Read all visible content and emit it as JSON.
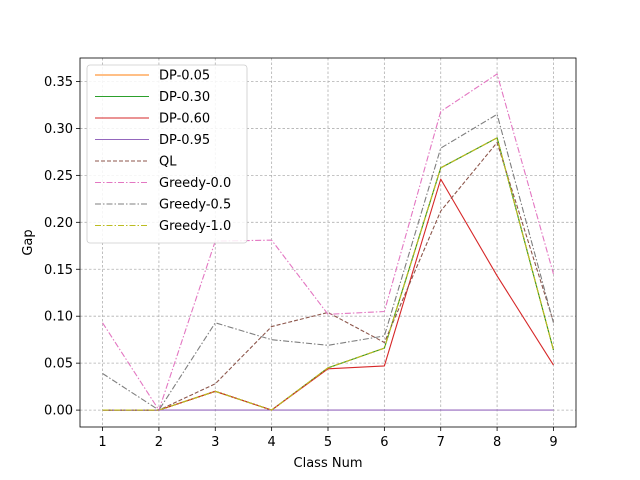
{
  "chart_data": {
    "type": "line",
    "title": "",
    "xlabel": "Class Num",
    "ylabel": "Gap",
    "x": [
      1,
      2,
      3,
      4,
      5,
      6,
      7,
      8,
      9
    ],
    "xlim": [
      0.6,
      9.4
    ],
    "ylim": [
      -0.018,
      0.375
    ],
    "xticks": [
      "1",
      "2",
      "3",
      "4",
      "5",
      "6",
      "7",
      "8",
      "9"
    ],
    "yticks": [
      0.0,
      0.05,
      0.1,
      0.15,
      0.2,
      0.25,
      0.3,
      0.35
    ],
    "ytick_labels": [
      "0.00",
      "0.05",
      "0.10",
      "0.15",
      "0.20",
      "0.25",
      "0.30",
      "0.35"
    ],
    "grid": true,
    "legend_position": "top-left",
    "series": [
      {
        "name": "DP-0.05",
        "color": "#ff7f0e",
        "dash": "solid",
        "values": [
          0.0,
          0.0,
          0.02,
          0.0,
          0.045,
          0.066,
          0.258,
          0.29,
          0.064
        ]
      },
      {
        "name": "DP-0.30",
        "color": "#2ca02c",
        "dash": "solid",
        "values": [
          0.0,
          0.0,
          0.02,
          0.0,
          0.045,
          0.066,
          0.258,
          0.29,
          0.064
        ]
      },
      {
        "name": "DP-0.60",
        "color": "#d62728",
        "dash": "solid",
        "values": [
          0.0,
          0.0,
          0.02,
          0.0,
          0.044,
          0.047,
          0.246,
          0.143,
          0.048
        ]
      },
      {
        "name": "DP-0.95",
        "color": "#9467bd",
        "dash": "solid",
        "values": [
          0.0,
          0.0,
          0.0,
          0.0,
          0.0,
          0.0,
          0.0,
          0.0,
          0.0
        ]
      },
      {
        "name": "QL",
        "color": "#8c564b",
        "dash": "dashed",
        "values": [
          0.0,
          0.0,
          0.028,
          0.089,
          0.104,
          0.072,
          0.212,
          0.285,
          0.094
        ]
      },
      {
        "name": "Greedy-0.0",
        "color": "#e377c2",
        "dash": "dashdot",
        "values": [
          0.093,
          0.0,
          0.18,
          0.181,
          0.102,
          0.105,
          0.318,
          0.358,
          0.145
        ]
      },
      {
        "name": "Greedy-0.5",
        "color": "#7f7f7f",
        "dash": "dashdot",
        "values": [
          0.039,
          0.0,
          0.093,
          0.075,
          0.069,
          0.079,
          0.279,
          0.315,
          0.093
        ]
      },
      {
        "name": "Greedy-1.0",
        "color": "#bcbd22",
        "dash": "dashdot",
        "values": [
          0.0,
          0.0,
          0.02,
          0.0,
          0.045,
          0.066,
          0.258,
          0.29,
          0.064
        ]
      }
    ]
  }
}
